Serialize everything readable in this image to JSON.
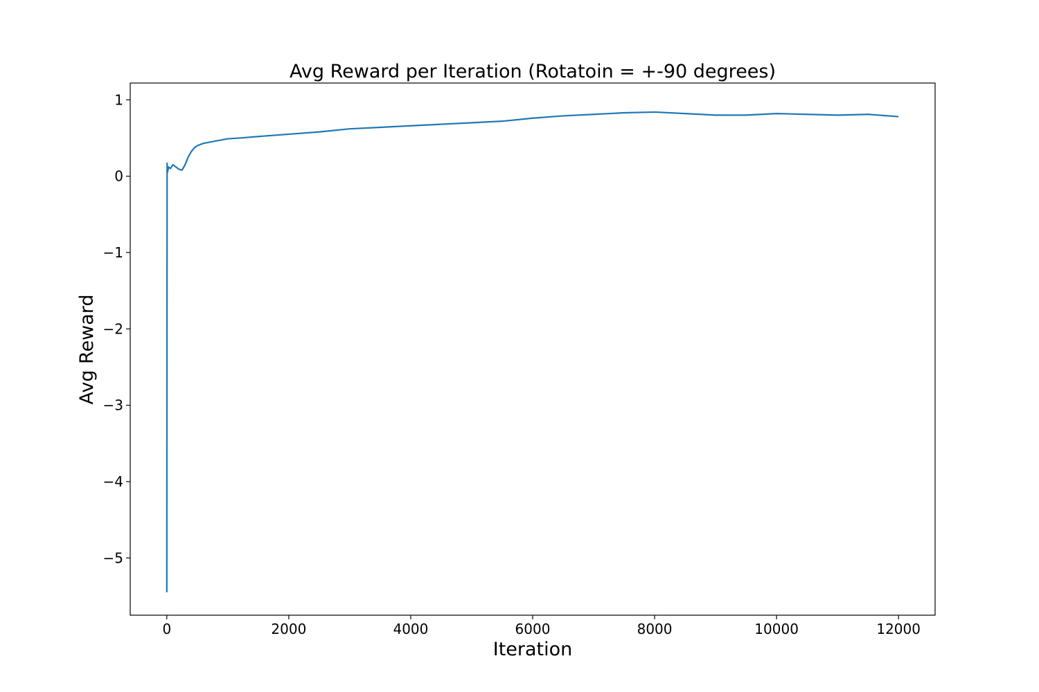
{
  "chart_data": {
    "type": "line",
    "title": "Avg Reward per Iteration (Rotatoin = +-90 degrees)",
    "xlabel": "Iteration",
    "ylabel": "Avg Reward",
    "xlim": [
      -600,
      12600
    ],
    "ylim": [
      -5.75,
      1.22
    ],
    "xticks": [
      0,
      2000,
      4000,
      6000,
      8000,
      10000,
      12000
    ],
    "xtick_labels": [
      "0",
      "2000",
      "4000",
      "6000",
      "8000",
      "10000",
      "12000"
    ],
    "yticks": [
      1,
      0,
      -1,
      -2,
      -3,
      -4,
      -5
    ],
    "ytick_labels": [
      "1",
      "0",
      "−1",
      "−2",
      "−3",
      "−4",
      "−5"
    ],
    "grid": false,
    "color": "#1f77b4",
    "series": [
      {
        "x": [
          0,
          5,
          10,
          30,
          60,
          100,
          150,
          200,
          250,
          300,
          350,
          400,
          450,
          500,
          600,
          800,
          1000,
          1200,
          1500,
          2000,
          2500,
          3000,
          3500,
          4000,
          4500,
          5000,
          5500,
          6000,
          6500,
          7000,
          7500,
          8000,
          8500,
          9000,
          9500,
          10000,
          10500,
          11000,
          11500,
          12000
        ],
        "y": [
          -5.45,
          0.17,
          0.05,
          0.12,
          0.1,
          0.15,
          0.12,
          0.09,
          0.08,
          0.15,
          0.25,
          0.32,
          0.37,
          0.4,
          0.43,
          0.46,
          0.49,
          0.5,
          0.52,
          0.55,
          0.58,
          0.62,
          0.64,
          0.66,
          0.68,
          0.7,
          0.72,
          0.76,
          0.79,
          0.81,
          0.83,
          0.84,
          0.82,
          0.8,
          0.8,
          0.82,
          0.81,
          0.8,
          0.81,
          0.78
        ]
      }
    ]
  }
}
